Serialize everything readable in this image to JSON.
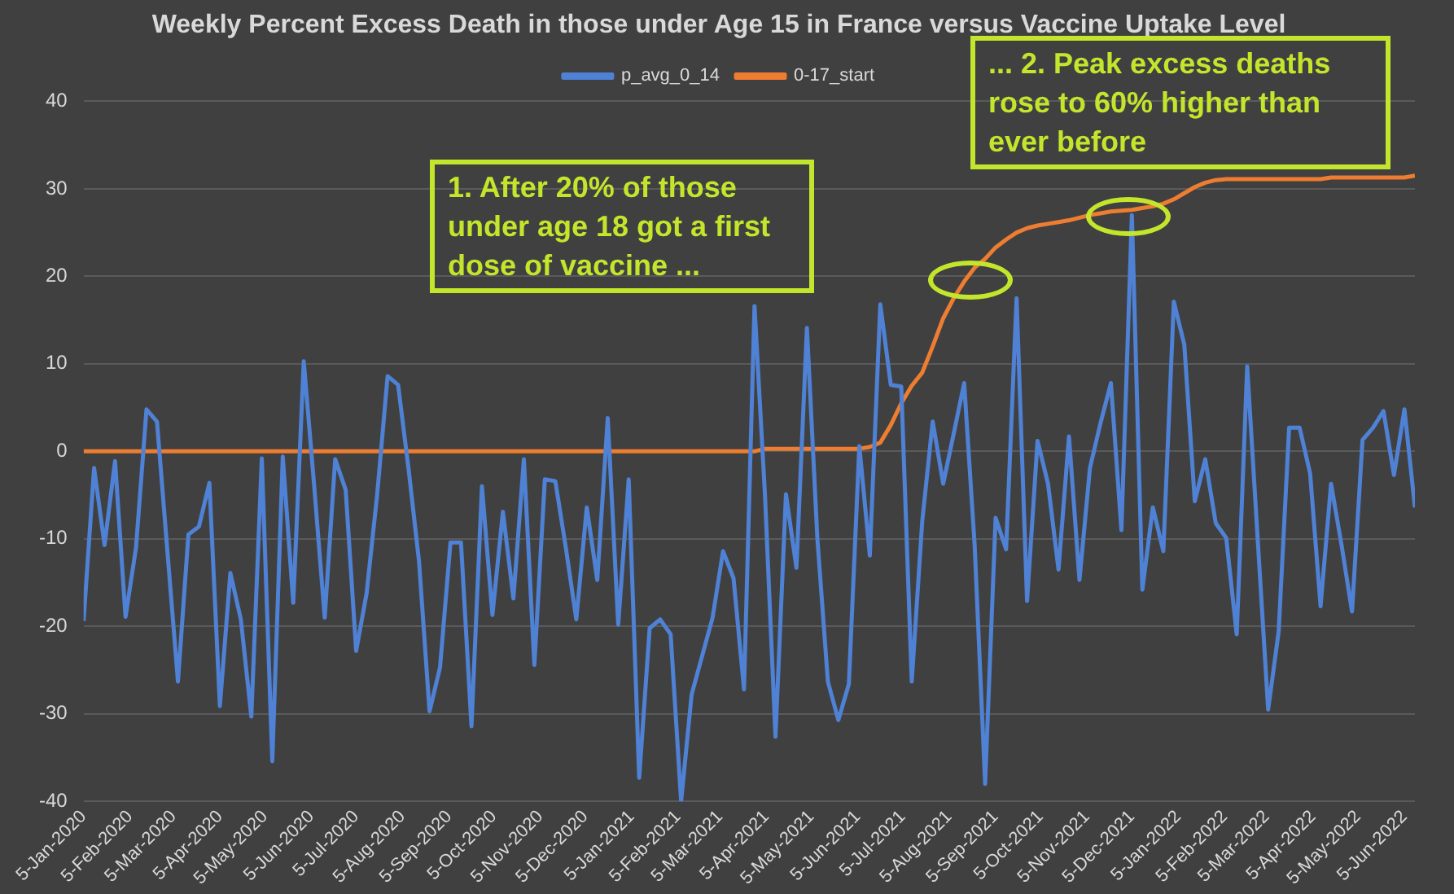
{
  "chart_data": {
    "type": "line",
    "title": "Weekly Percent Excess Death in those under Age 15 in France versus Vaccine Uptake Level",
    "annotations": [
      "1. After 20% of those under age 18 got a first dose of vaccine ...",
      "... 2. Peak excess deaths rose to 60% higher than ever before"
    ],
    "x": [
      "2020-01-05",
      "2020-01-12",
      "2020-01-19",
      "2020-01-26",
      "2020-02-02",
      "2020-02-09",
      "2020-02-16",
      "2020-02-23",
      "2020-03-01",
      "2020-03-08",
      "2020-03-15",
      "2020-03-22",
      "2020-03-29",
      "2020-04-05",
      "2020-04-12",
      "2020-04-19",
      "2020-04-26",
      "2020-05-03",
      "2020-05-10",
      "2020-05-17",
      "2020-05-24",
      "2020-05-31",
      "2020-06-07",
      "2020-06-14",
      "2020-06-21",
      "2020-06-28",
      "2020-07-05",
      "2020-07-12",
      "2020-07-19",
      "2020-07-26",
      "2020-08-02",
      "2020-08-09",
      "2020-08-16",
      "2020-08-23",
      "2020-08-30",
      "2020-09-06",
      "2020-09-13",
      "2020-09-20",
      "2020-09-27",
      "2020-10-04",
      "2020-10-11",
      "2020-10-18",
      "2020-10-25",
      "2020-11-01",
      "2020-11-08",
      "2020-11-15",
      "2020-11-22",
      "2020-11-29",
      "2020-12-06",
      "2020-12-13",
      "2020-12-20",
      "2020-12-27",
      "2021-01-03",
      "2021-01-10",
      "2021-01-17",
      "2021-01-24",
      "2021-01-31",
      "2021-02-07",
      "2021-02-14",
      "2021-02-21",
      "2021-02-28",
      "2021-03-07",
      "2021-03-14",
      "2021-03-21",
      "2021-03-28",
      "2021-04-04",
      "2021-04-11",
      "2021-04-18",
      "2021-04-25",
      "2021-05-02",
      "2021-05-09",
      "2021-05-16",
      "2021-05-23",
      "2021-05-30",
      "2021-06-06",
      "2021-06-13",
      "2021-06-20",
      "2021-06-27",
      "2021-07-04",
      "2021-07-11",
      "2021-07-18",
      "2021-07-25",
      "2021-08-01",
      "2021-08-08",
      "2021-08-15",
      "2021-08-22",
      "2021-08-29",
      "2021-09-05",
      "2021-09-12",
      "2021-09-19",
      "2021-09-26",
      "2021-10-03",
      "2021-10-10",
      "2021-10-17",
      "2021-10-24",
      "2021-10-31",
      "2021-11-07",
      "2021-11-14",
      "2021-11-21",
      "2021-11-28",
      "2021-12-05",
      "2021-12-12",
      "2021-12-19",
      "2021-12-26",
      "2022-01-02",
      "2022-01-09",
      "2022-01-16",
      "2022-01-23",
      "2022-01-30",
      "2022-02-06",
      "2022-02-13",
      "2022-02-20",
      "2022-02-27",
      "2022-03-06",
      "2022-03-13",
      "2022-03-20",
      "2022-03-27",
      "2022-04-03",
      "2022-04-10",
      "2022-04-17",
      "2022-04-24",
      "2022-05-01",
      "2022-05-08",
      "2022-05-15",
      "2022-05-22",
      "2022-05-29",
      "2022-06-05",
      "2022-06-12"
    ],
    "series": [
      {
        "name": "p_avg_0_14",
        "color": "#4f81d4",
        "values": [
          -19.4,
          -1.9,
          -10.7,
          -1.1,
          -18.9,
          -11,
          4.8,
          3.4,
          -11.5,
          -26.3,
          -9.5,
          -8.6,
          -3.6,
          -29.1,
          -13.9,
          -19.2,
          -30.3,
          -0.8,
          -35.4,
          -0.6,
          -17.3,
          10.3,
          -4,
          -19,
          -0.9,
          -4.4,
          -22.8,
          -16.2,
          -5,
          8.6,
          7.6,
          -2,
          -12.6,
          -29.7,
          -24.7,
          -10.4,
          -10.4,
          -31.4,
          -4,
          -18.7,
          -6.9,
          -16.8,
          -0.9,
          -24.4,
          -3.2,
          -3.4,
          -11,
          -19.2,
          -6.4,
          -14.7,
          3.8,
          -19.8,
          -3.2,
          -37.3,
          -20.2,
          -19.2,
          -20.9,
          -40,
          -27.8,
          -23.4,
          -19,
          -11.4,
          -14.5,
          -27.2,
          16.6,
          -5,
          -32.6,
          -4.9,
          -13.3,
          14.1,
          -10,
          -26.3,
          -30.7,
          -26.6,
          0.6,
          -11.9,
          16.8,
          7.6,
          7.4,
          -26.3,
          -8,
          3.4,
          -3.7,
          2,
          7.8,
          -10.7,
          -38,
          -7.6,
          -11.2,
          17.5,
          -17.1,
          1.2,
          -3.7,
          -13.5,
          1.7,
          -14.7,
          -1.9,
          3.2,
          7.8,
          -9,
          27,
          -15.8,
          -6.4,
          -11.4,
          17.1,
          12.2,
          -5.7,
          -0.9,
          -8.2,
          -9.9,
          -20.9,
          9.7,
          -10,
          -29.5,
          -20.6,
          2.7,
          2.7,
          -2.5,
          -17.7,
          -3.7,
          -10.7,
          -18.3,
          1.3,
          2.7,
          4.6,
          -2.7,
          4.8,
          -6.4
        ]
      },
      {
        "name": "0-17_start",
        "color": "#ed7d31",
        "values": [
          0,
          0,
          0,
          0,
          0,
          0,
          0,
          0,
          0,
          0,
          0,
          0,
          0,
          0,
          0,
          0,
          0,
          0,
          0,
          0,
          0,
          0,
          0,
          0,
          0,
          0,
          0,
          0,
          0,
          0,
          0,
          0,
          0,
          0,
          0,
          0,
          0,
          0,
          0,
          0,
          0,
          0,
          0,
          0,
          0,
          0,
          0,
          0,
          0,
          0,
          0,
          0,
          0,
          0,
          0,
          0,
          0,
          0,
          0,
          0,
          0,
          0,
          0,
          0,
          0,
          0.3,
          0.3,
          0.3,
          0.3,
          0.3,
          0.3,
          0.3,
          0.3,
          0.3,
          0.3,
          0.5,
          1,
          3,
          5.5,
          7.5,
          9,
          12,
          15.2,
          17.5,
          19.4,
          21,
          22,
          23.3,
          24.2,
          25,
          25.5,
          25.8,
          26,
          26.2,
          26.4,
          26.7,
          27,
          27.2,
          27.4,
          27.5,
          27.6,
          27.8,
          28,
          28.3,
          28.8,
          29.5,
          30.2,
          30.7,
          31,
          31.1,
          31.1,
          31.1,
          31.1,
          31.1,
          31.1,
          31.1,
          31.1,
          31.1,
          31.1,
          31.3,
          31.3,
          31.3,
          31.3,
          31.3,
          31.3,
          31.3,
          31.3,
          31.5
        ]
      }
    ],
    "xlim": [
      "2020-01-05",
      "2022-06-12"
    ],
    "xticks": [
      {
        "value": "2020-01-05",
        "label": "5-Jan-2020"
      },
      {
        "value": "2020-02-05",
        "label": "5-Feb-2020"
      },
      {
        "value": "2020-03-05",
        "label": "5-Mar-2020"
      },
      {
        "value": "2020-04-05",
        "label": "5-Apr-2020"
      },
      {
        "value": "2020-05-05",
        "label": "5-May-2020"
      },
      {
        "value": "2020-06-05",
        "label": "5-Jun-2020"
      },
      {
        "value": "2020-07-05",
        "label": "5-Jul-2020"
      },
      {
        "value": "2020-08-05",
        "label": "5-Aug-2020"
      },
      {
        "value": "2020-09-05",
        "label": "5-Sep-2020"
      },
      {
        "value": "2020-10-05",
        "label": "5-Oct-2020"
      },
      {
        "value": "2020-11-05",
        "label": "5-Nov-2020"
      },
      {
        "value": "2020-12-05",
        "label": "5-Dec-2020"
      },
      {
        "value": "2021-01-05",
        "label": "5-Jan-2021"
      },
      {
        "value": "2021-02-05",
        "label": "5-Feb-2021"
      },
      {
        "value": "2021-03-05",
        "label": "5-Mar-2021"
      },
      {
        "value": "2021-04-05",
        "label": "5-Apr-2021"
      },
      {
        "value": "2021-05-05",
        "label": "5-May-2021"
      },
      {
        "value": "2021-06-05",
        "label": "5-Jun-2021"
      },
      {
        "value": "2021-07-05",
        "label": "5-Jul-2021"
      },
      {
        "value": "2021-08-05",
        "label": "5-Aug-2021"
      },
      {
        "value": "2021-09-05",
        "label": "5-Sep-2021"
      },
      {
        "value": "2021-10-05",
        "label": "5-Oct-2021"
      },
      {
        "value": "2021-11-05",
        "label": "5-Nov-2021"
      },
      {
        "value": "2021-12-05",
        "label": "5-Dec-2021"
      },
      {
        "value": "2022-01-05",
        "label": "5-Jan-2022"
      },
      {
        "value": "2022-02-05",
        "label": "5-Feb-2022"
      },
      {
        "value": "2022-03-05",
        "label": "5-Mar-2022"
      },
      {
        "value": "2022-04-05",
        "label": "5-Apr-2022"
      },
      {
        "value": "2022-05-05",
        "label": "5-May-2022"
      },
      {
        "value": "2022-06-05",
        "label": "5-Jun-2022"
      }
    ],
    "ylim": [
      -40,
      40
    ],
    "yticks": [
      -40,
      -30,
      -20,
      -10,
      0,
      10,
      20,
      30,
      40
    ],
    "grid": "y",
    "legend": "top"
  }
}
